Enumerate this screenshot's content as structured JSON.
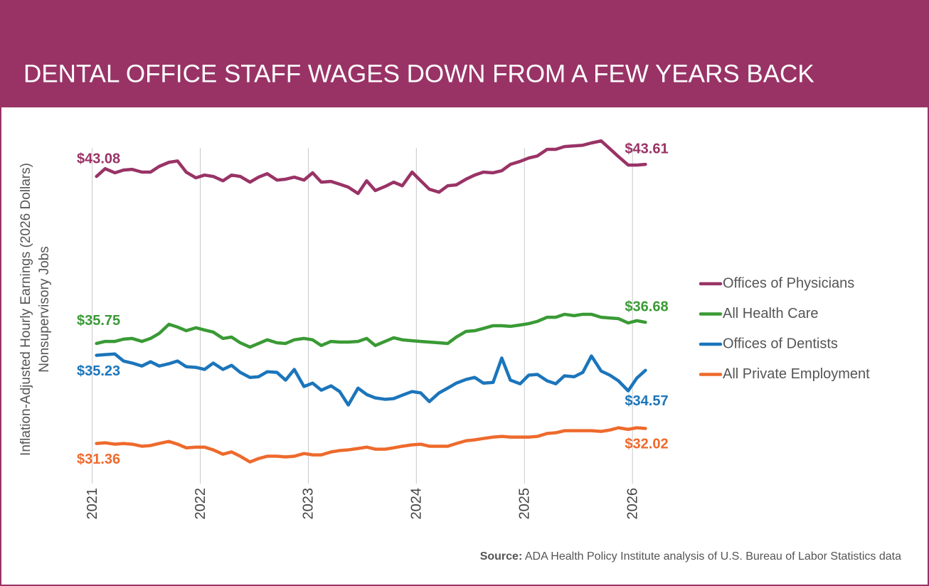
{
  "chart_data": {
    "type": "line",
    "title": "DENTAL OFFICE STAFF WAGES DOWN FROM A FEW YEARS BACK",
    "y_label": [
      "Inflation-Adjusted Hourly Earnings (2026 Dollars)",
      "Nonsupervisory Jobs"
    ],
    "source": {
      "label": "Source:",
      "text": "ADA Health Policy Institute analysis of U.S. Bureau of Labor Statistics data"
    },
    "legend": "right",
    "grid": true,
    "xlim": [
      2020.95,
      2026.17
    ],
    "xticks": [
      2021,
      2022,
      2023,
      2024,
      2025,
      2026
    ],
    "ylim": [
      29.6,
      44.8
    ],
    "x": [
      2021.04,
      2021.12,
      2021.21,
      2021.29,
      2021.37,
      2021.46,
      2021.54,
      2021.62,
      2021.71,
      2021.79,
      2021.87,
      2021.96,
      2022.04,
      2022.12,
      2022.21,
      2022.29,
      2022.37,
      2022.46,
      2022.54,
      2022.62,
      2022.71,
      2022.79,
      2022.87,
      2022.96,
      2023.04,
      2023.12,
      2023.21,
      2023.29,
      2023.37,
      2023.46,
      2023.54,
      2023.62,
      2023.71,
      2023.79,
      2023.87,
      2023.96,
      2024.04,
      2024.12,
      2024.21,
      2024.29,
      2024.37,
      2024.46,
      2024.54,
      2024.62,
      2024.71,
      2024.79,
      2024.87,
      2024.96,
      2025.04,
      2025.12,
      2025.21,
      2025.29,
      2025.37,
      2025.46,
      2025.54,
      2025.62,
      2025.71,
      2025.79,
      2025.87,
      2025.96,
      2026.04,
      2026.12
    ],
    "series": [
      {
        "name": "Offices of Physicians",
        "color": "#993366",
        "values": [
          43.08,
          43.42,
          43.24,
          43.36,
          43.39,
          43.27,
          43.27,
          43.52,
          43.7,
          43.76,
          43.27,
          43.02,
          43.14,
          43.08,
          42.89,
          43.14,
          43.08,
          42.83,
          43.05,
          43.2,
          42.92,
          42.96,
          43.05,
          42.92,
          43.24,
          42.83,
          42.86,
          42.74,
          42.61,
          42.33,
          42.89,
          42.46,
          42.64,
          42.83,
          42.67,
          43.27,
          42.89,
          42.52,
          42.39,
          42.67,
          42.71,
          42.96,
          43.14,
          43.27,
          43.24,
          43.33,
          43.61,
          43.74,
          43.89,
          43.98,
          44.27,
          44.27,
          44.39,
          44.42,
          44.45,
          44.55,
          44.64,
          44.3,
          43.95,
          43.58,
          43.58,
          43.61
        ],
        "value_labels": [
          "$43.08",
          null,
          null,
          null,
          null,
          null,
          null,
          null,
          null,
          null,
          null,
          null,
          null,
          null,
          null,
          null,
          null,
          null,
          null,
          null,
          null,
          null,
          null,
          null,
          null,
          null,
          null,
          null,
          null,
          null,
          null,
          null,
          null,
          null,
          null,
          null,
          null,
          null,
          null,
          null,
          null,
          null,
          null,
          null,
          null,
          null,
          null,
          null,
          null,
          null,
          null,
          null,
          null,
          null,
          null,
          null,
          null,
          null,
          null,
          null,
          null,
          "$43.61"
        ]
      },
      {
        "name": "All Health Care",
        "color": "#3a9a35",
        "values": [
          35.75,
          35.84,
          35.84,
          35.94,
          35.97,
          35.84,
          35.97,
          36.19,
          36.59,
          36.47,
          36.31,
          36.44,
          36.34,
          36.25,
          35.97,
          36.03,
          35.78,
          35.59,
          35.75,
          35.91,
          35.78,
          35.75,
          35.91,
          35.97,
          35.91,
          35.66,
          35.84,
          35.81,
          35.81,
          35.84,
          35.97,
          35.66,
          35.84,
          36.0,
          35.91,
          35.87,
          35.84,
          35.81,
          35.78,
          35.75,
          36.03,
          36.28,
          36.31,
          36.41,
          36.53,
          36.53,
          36.5,
          36.56,
          36.62,
          36.72,
          36.9,
          36.9,
          37.03,
          36.97,
          37.03,
          37.03,
          36.9,
          36.87,
          36.84,
          36.65,
          36.75,
          36.68
        ],
        "value_labels": [
          "$35.75",
          null,
          null,
          null,
          null,
          null,
          null,
          null,
          null,
          null,
          null,
          null,
          null,
          null,
          null,
          null,
          null,
          null,
          null,
          null,
          null,
          null,
          null,
          null,
          null,
          null,
          null,
          null,
          null,
          null,
          null,
          null,
          null,
          null,
          null,
          null,
          null,
          null,
          null,
          null,
          null,
          null,
          null,
          null,
          null,
          null,
          null,
          null,
          null,
          null,
          null,
          null,
          null,
          null,
          null,
          null,
          null,
          null,
          null,
          null,
          null,
          "$36.68"
        ]
      },
      {
        "name": "Offices of Dentists",
        "color": "#1b75bb",
        "values": [
          35.23,
          35.26,
          35.29,
          34.98,
          34.89,
          34.76,
          34.95,
          34.76,
          34.86,
          34.98,
          34.73,
          34.7,
          34.61,
          34.89,
          34.61,
          34.79,
          34.48,
          34.26,
          34.29,
          34.51,
          34.48,
          34.14,
          34.61,
          33.86,
          34.01,
          33.7,
          33.89,
          33.64,
          33.05,
          33.79,
          33.51,
          33.36,
          33.3,
          33.33,
          33.48,
          33.64,
          33.58,
          33.2,
          33.58,
          33.79,
          34.01,
          34.17,
          34.26,
          34.01,
          34.04,
          35.11,
          34.14,
          33.98,
          34.36,
          34.39,
          34.11,
          33.98,
          34.33,
          34.29,
          34.48,
          35.2,
          34.54,
          34.36,
          34.11,
          33.67,
          34.23,
          34.57
        ],
        "value_labels": [
          "$35.23",
          null,
          null,
          null,
          null,
          null,
          null,
          null,
          null,
          null,
          null,
          null,
          null,
          null,
          null,
          null,
          null,
          null,
          null,
          null,
          null,
          null,
          null,
          null,
          null,
          null,
          null,
          null,
          null,
          null,
          null,
          null,
          null,
          null,
          null,
          null,
          null,
          null,
          null,
          null,
          null,
          null,
          null,
          null,
          null,
          null,
          null,
          null,
          null,
          null,
          null,
          null,
          null,
          null,
          null,
          null,
          null,
          null,
          null,
          null,
          null,
          "$34.57"
        ]
      },
      {
        "name": "All Private Employment",
        "color": "#ee6a2c",
        "values": [
          31.36,
          31.39,
          31.33,
          31.36,
          31.33,
          31.24,
          31.27,
          31.36,
          31.45,
          31.33,
          31.17,
          31.2,
          31.2,
          31.08,
          30.89,
          30.99,
          30.8,
          30.55,
          30.7,
          30.8,
          30.8,
          30.77,
          30.8,
          30.92,
          30.86,
          30.86,
          30.99,
          31.05,
          31.08,
          31.14,
          31.2,
          31.11,
          31.11,
          31.17,
          31.24,
          31.3,
          31.33,
          31.24,
          31.24,
          31.24,
          31.36,
          31.48,
          31.52,
          31.58,
          31.64,
          31.67,
          31.64,
          31.64,
          31.64,
          31.67,
          31.8,
          31.83,
          31.92,
          31.92,
          31.92,
          31.92,
          31.89,
          31.95,
          32.05,
          31.98,
          32.05,
          32.02
        ],
        "value_labels": [
          "$31.36",
          null,
          null,
          null,
          null,
          null,
          null,
          null,
          null,
          null,
          null,
          null,
          null,
          null,
          null,
          null,
          null,
          null,
          null,
          null,
          null,
          null,
          null,
          null,
          null,
          null,
          null,
          null,
          null,
          null,
          null,
          null,
          null,
          null,
          null,
          null,
          null,
          null,
          null,
          null,
          null,
          null,
          null,
          null,
          null,
          null,
          null,
          null,
          null,
          null,
          null,
          null,
          null,
          null,
          null,
          null,
          null,
          null,
          null,
          null,
          null,
          "$32.02"
        ]
      }
    ]
  }
}
